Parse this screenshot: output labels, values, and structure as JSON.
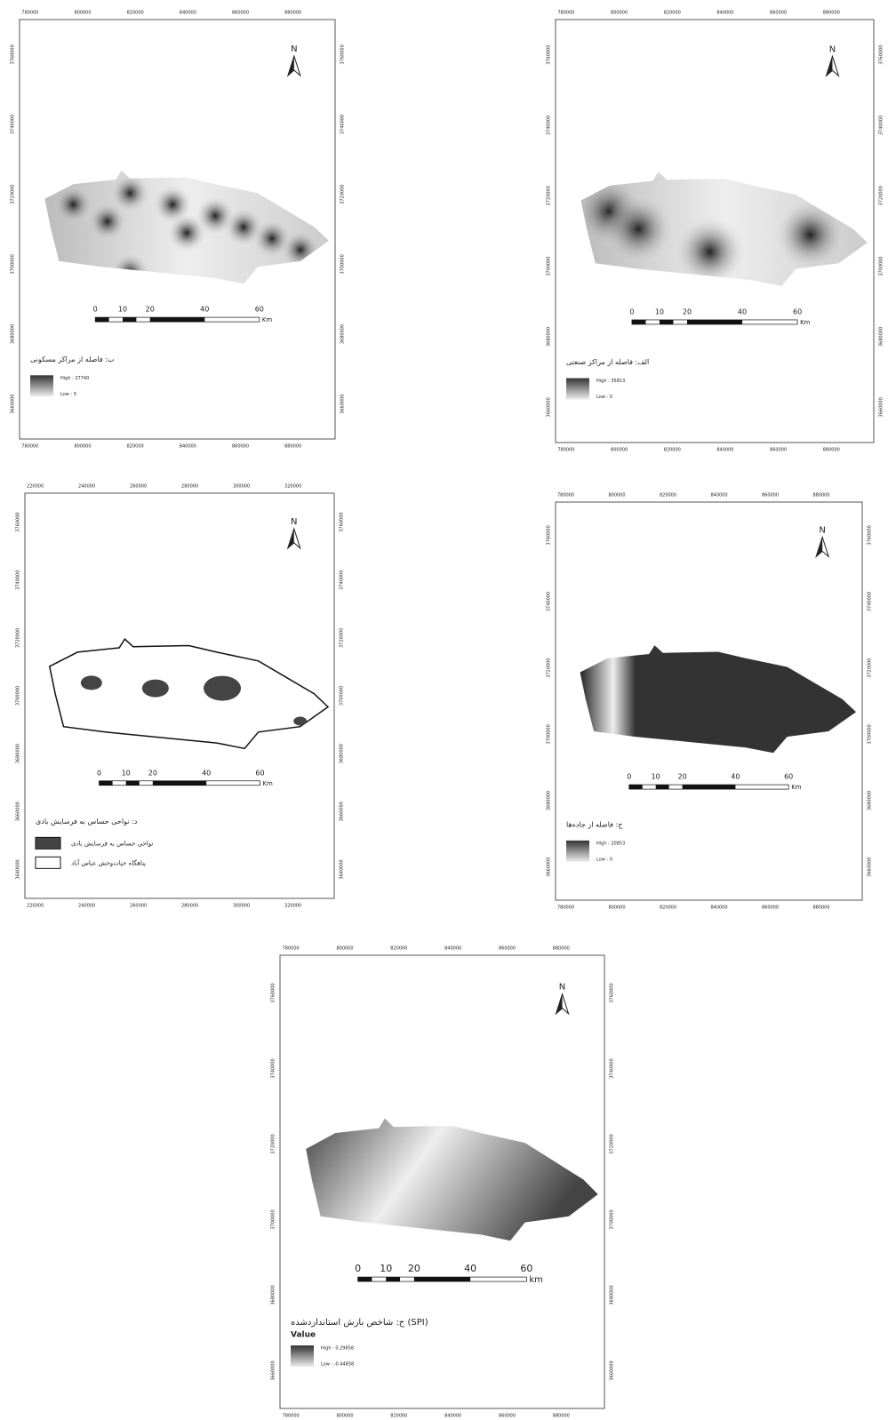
{
  "maps": [
    {
      "title": "ب: فاصله از مراکز مسکونی",
      "north": "N",
      "xticks": [
        "780000",
        "800000",
        "820000",
        "840000",
        "860000",
        "880000"
      ],
      "yticks": [
        "3760000",
        "3740000",
        "3720000",
        "3700000",
        "3680000",
        "3660000"
      ],
      "scale": [
        "0",
        "10",
        "20",
        "40",
        "60"
      ],
      "scale_unit": "Km",
      "legend": [
        "High : 27740",
        "Low : 0"
      ]
    },
    {
      "title": "الف: فاصله از مراکز صنعتی",
      "north": "N",
      "xticks": [
        "780000",
        "800000",
        "820000",
        "840000",
        "860000",
        "880000"
      ],
      "yticks": [
        "3760000",
        "3740000",
        "3720000",
        "3700000",
        "3680000",
        "3660000"
      ],
      "scale": [
        "0",
        "10",
        "20",
        "40",
        "60"
      ],
      "scale_unit": "Km",
      "legend": [
        "High : 35813",
        "Low : 0"
      ]
    },
    {
      "title": "د: نواحی حساس به فرسایش بادی",
      "north": "N",
      "xticks": [
        "220000",
        "240000",
        "260000",
        "280000",
        "300000",
        "320000"
      ],
      "yticks": [
        "3760000",
        "3740000",
        "3720000",
        "3700000",
        "3680000",
        "3660000",
        "3640000"
      ],
      "scale": [
        "0",
        "10",
        "20",
        "40",
        "60"
      ],
      "scale_unit": "Km",
      "legend": [
        "نواحی حساس به فرسایش بادی",
        "پناهگاه حیات‌وحش عباس آباد"
      ]
    },
    {
      "title": "ج: فاصله از جاده‌ها",
      "north": "N",
      "xticks": [
        "780000",
        "800000",
        "820000",
        "840000",
        "860000",
        "880000"
      ],
      "yticks": [
        "3760000",
        "3740000",
        "3720000",
        "3700000",
        "3680000",
        "3660000"
      ],
      "scale": [
        "0",
        "10",
        "20",
        "40",
        "60"
      ],
      "scale_unit": "Km",
      "legend": [
        "High : 20853",
        "Low : 0"
      ]
    },
    {
      "title": "ح: شاخص بارش استاندارد‌شده (SPI)",
      "north": "N",
      "xticks": [
        "780000",
        "800000",
        "820000",
        "840000",
        "860000",
        "880000"
      ],
      "yticks": [
        "3760000",
        "3740000",
        "3720000",
        "3700000",
        "3680000",
        "3660000"
      ],
      "scale": [
        "0",
        "10",
        "20",
        "40",
        "60"
      ],
      "scale_unit": "km",
      "legend_header": "Value",
      "legend": [
        "High : 0.29858",
        "Low : -0.44858"
      ]
    }
  ]
}
